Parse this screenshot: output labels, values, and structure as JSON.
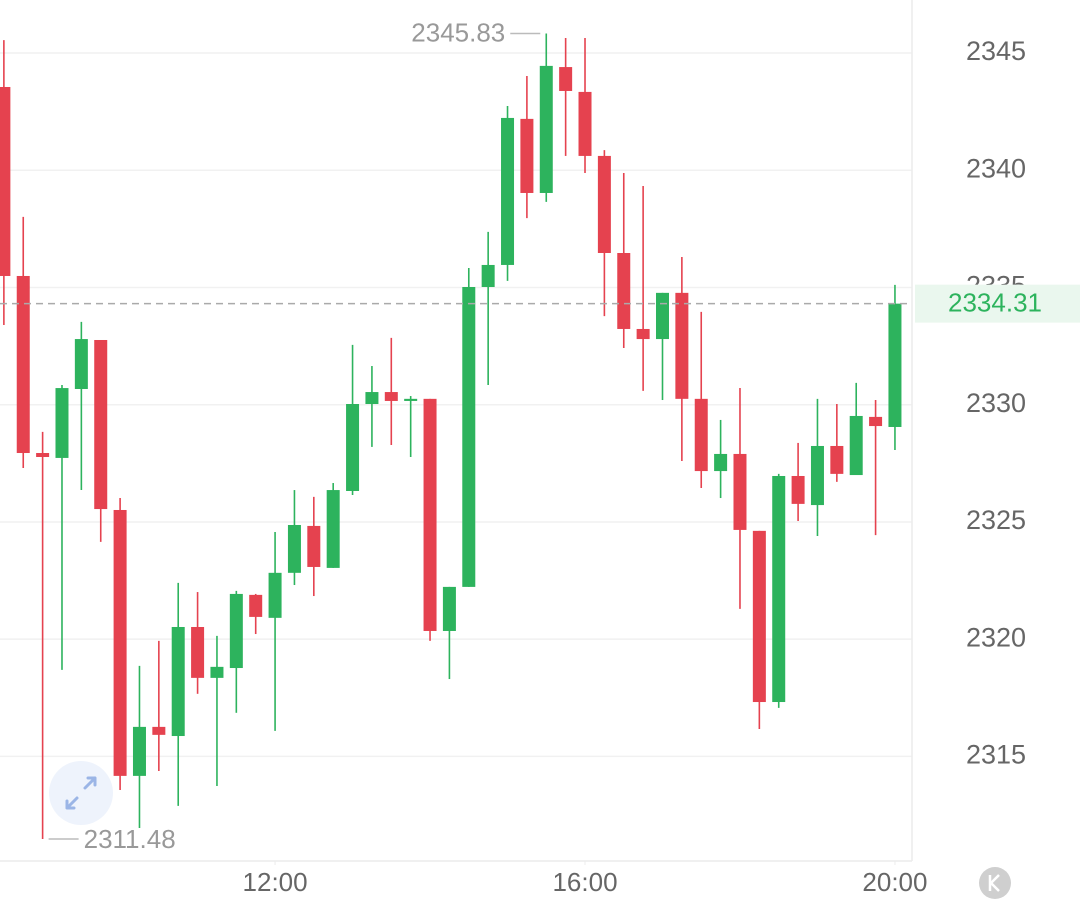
{
  "chart_data": {
    "type": "candlestick",
    "x": [
      8.5,
      8.75,
      9,
      9.25,
      9.5,
      9.75,
      10,
      10.25,
      10.5,
      10.75,
      11,
      11.25,
      11.5,
      11.75,
      12,
      12.25,
      12.5,
      12.75,
      13,
      13.25,
      13.5,
      13.75,
      14,
      14.25,
      14.5,
      14.75,
      15,
      15.25,
      15.5,
      15.75,
      16,
      16.25,
      16.5,
      16.75,
      17,
      17.25,
      17.5,
      17.75,
      18,
      18.25,
      18.5,
      18.75,
      19,
      19.25,
      19.5,
      19.75,
      20
    ],
    "open": [
      2343.55,
      2335.49,
      2327.94,
      2327.73,
      2330.67,
      2332.76,
      2325.51,
      2314.17,
      2316.26,
      2315.87,
      2320.52,
      2318.35,
      2318.77,
      2321.89,
      2320.91,
      2322.83,
      2324.83,
      2323.04,
      2326.32,
      2330.03,
      2330.54,
      2330.16,
      2330.25,
      2320.35,
      2322.23,
      2335.02,
      2335.96,
      2342.19,
      2339.03,
      2344.4,
      2343.34,
      2340.61,
      2336.47,
      2333.23,
      2332.8,
      2334.77,
      2330.25,
      2327.17,
      2327.9,
      2324.62,
      2317.32,
      2326.96,
      2325.72,
      2328.24,
      2327.0,
      2329.48,
      2329.05
    ],
    "high": [
      2345.55,
      2338.01,
      2328.84,
      2330.84,
      2333.53,
      2332.76,
      2326.02,
      2318.86,
      2319.93,
      2322.4,
      2322.01,
      2320.14,
      2322.06,
      2321.93,
      2324.57,
      2326.36,
      2326.07,
      2326.66,
      2332.55,
      2331.65,
      2332.85,
      2330.37,
      2330.25,
      2322.23,
      2335.83,
      2337.37,
      2342.74,
      2344.02,
      2345.83,
      2345.64,
      2345.64,
      2340.86,
      2339.88,
      2339.33,
      2334.77,
      2336.3,
      2333.96,
      2329.35,
      2330.71,
      2324.62,
      2327.05,
      2328.37,
      2330.25,
      2330.03,
      2330.93,
      2330.2,
      2335.11
    ],
    "low": [
      2333.4,
      2327.3,
      2311.48,
      2318.69,
      2326.36,
      2324.15,
      2313.57,
      2311.95,
      2314.38,
      2312.89,
      2317.67,
      2313.74,
      2316.86,
      2320.22,
      2316.09,
      2322.31,
      2321.84,
      2323.04,
      2326.15,
      2328.2,
      2328.28,
      2327.77,
      2319.93,
      2318.3,
      2322.23,
      2330.84,
      2335.28,
      2337.96,
      2338.65,
      2340.61,
      2339.88,
      2333.78,
      2332.42,
      2330.59,
      2330.2,
      2327.6,
      2326.45,
      2326.02,
      2321.29,
      2316.17,
      2317.07,
      2325.04,
      2324.4,
      2326.71,
      2327.0,
      2324.44,
      2328.07
    ],
    "close": [
      2335.49,
      2327.94,
      2327.77,
      2330.71,
      2332.8,
      2325.55,
      2314.17,
      2316.26,
      2315.92,
      2320.52,
      2318.35,
      2318.82,
      2321.93,
      2320.95,
      2322.83,
      2324.87,
      2323.08,
      2326.36,
      2330.03,
      2330.54,
      2330.16,
      2330.25,
      2320.35,
      2322.23,
      2335.02,
      2335.96,
      2342.23,
      2339.03,
      2344.45,
      2343.38,
      2340.61,
      2336.47,
      2333.23,
      2332.8,
      2334.77,
      2330.25,
      2327.17,
      2327.9,
      2324.66,
      2317.32,
      2326.96,
      2325.77,
      2328.24,
      2327.05,
      2329.52,
      2329.09,
      2334.31
    ],
    "up_color": "#2db35d",
    "down_color": "#e5424f",
    "xlim": [
      8.45,
      20.22
    ],
    "xticks": [
      {
        "value": 12,
        "label": "12:00"
      },
      {
        "value": 16,
        "label": "16:00"
      },
      {
        "value": 20,
        "label": "20:00"
      }
    ],
    "ylim": [
      2310.54,
      2347.26
    ],
    "yticks": [
      2315,
      2320,
      2325,
      2330,
      2335,
      2340,
      2345
    ],
    "grid": true,
    "annotations": {
      "high": {
        "x": 15.5,
        "value": 2345.83
      },
      "low": {
        "x": 9,
        "value": 2311.48
      }
    },
    "last_price": 2334.31
  }
}
